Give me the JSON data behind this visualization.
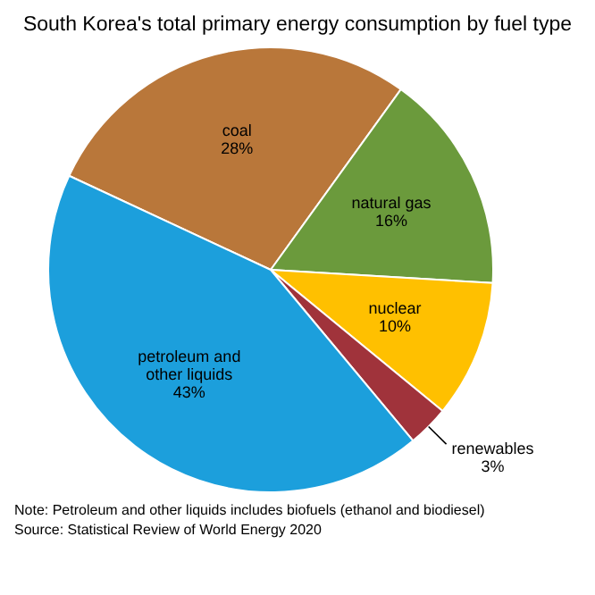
{
  "chart_data": {
    "type": "pie",
    "title": "South Korea's total primary energy consumption by fuel type",
    "categories": [
      "coal",
      "natural gas",
      "nuclear",
      "renewables",
      "petroleum and other liquids"
    ],
    "values": [
      28,
      16,
      10,
      3,
      43
    ],
    "colors": [
      "#b9773a",
      "#6b9a3c",
      "#ffc000",
      "#a0333b",
      "#1c9fdc"
    ],
    "value_labels": [
      "28%",
      "16%",
      "10%",
      "3%",
      "43%"
    ],
    "legend": false,
    "annotations": [
      "Note: Petroleum and other liquids includes biofuels (ethanol and biodiesel)",
      "Source: Statistical Review of World Energy 2020"
    ]
  }
}
